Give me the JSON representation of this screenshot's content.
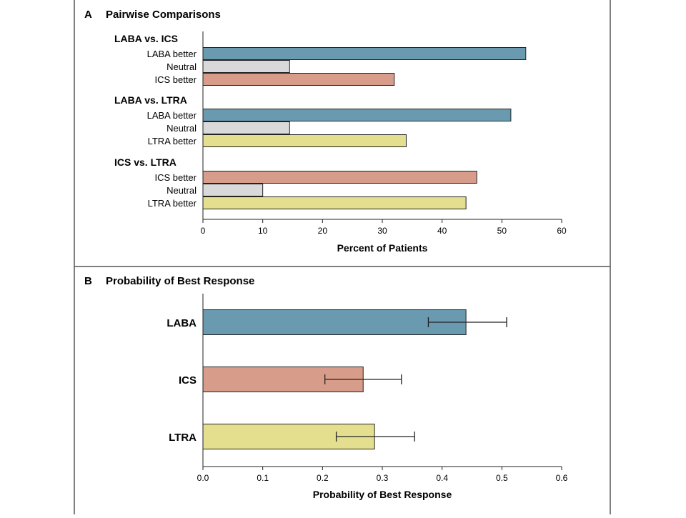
{
  "colors": {
    "LABA": "#6a9ab0",
    "ICS": "#d89c8a",
    "LTRA": "#e3df8f",
    "Neutral": "#d9d9d9",
    "stroke": "#222222",
    "frame": "#555555"
  },
  "chart_data": [
    {
      "type": "bar",
      "orientation": "horizontal",
      "panel_letter": "A",
      "title": "Pairwise Comparisons",
      "xlabel": "Percent of Patients",
      "xlim": [
        0,
        60
      ],
      "xticks": [
        "0",
        "10",
        "20",
        "30",
        "40",
        "50",
        "60"
      ],
      "groups": [
        {
          "title": "LABA vs. ICS",
          "bars": [
            {
              "label": "LABA better",
              "value": 54,
              "color_key": "LABA"
            },
            {
              "label": "Neutral",
              "value": 14.5,
              "color_key": "Neutral"
            },
            {
              "label": "ICS better",
              "value": 32,
              "color_key": "ICS"
            }
          ]
        },
        {
          "title": "LABA vs. LTRA",
          "bars": [
            {
              "label": "LABA better",
              "value": 51.5,
              "color_key": "LABA"
            },
            {
              "label": "Neutral",
              "value": 14.5,
              "color_key": "Neutral"
            },
            {
              "label": "LTRA better",
              "value": 34,
              "color_key": "LTRA"
            }
          ]
        },
        {
          "title": "ICS vs. LTRA",
          "bars": [
            {
              "label": "ICS better",
              "value": 45.8,
              "color_key": "ICS"
            },
            {
              "label": "Neutral",
              "value": 10,
              "color_key": "Neutral"
            },
            {
              "label": "LTRA better",
              "value": 44,
              "color_key": "LTRA"
            }
          ]
        }
      ]
    },
    {
      "type": "bar",
      "orientation": "horizontal",
      "panel_letter": "B",
      "title": "Probability of Best Response",
      "xlabel": "Probability of Best Response",
      "xlim": [
        0,
        0.6
      ],
      "xticks": [
        "0.0",
        "0.1",
        "0.2",
        "0.3",
        "0.4",
        "0.5",
        "0.6"
      ],
      "bars": [
        {
          "label": "LABA",
          "value": 0.44,
          "ci": [
            0.377,
            0.508
          ],
          "color_key": "LABA"
        },
        {
          "label": "ICS",
          "value": 0.268,
          "ci": [
            0.204,
            0.332
          ],
          "color_key": "ICS"
        },
        {
          "label": "LTRA",
          "value": 0.287,
          "ci": [
            0.223,
            0.354
          ],
          "color_key": "LTRA"
        }
      ]
    }
  ]
}
